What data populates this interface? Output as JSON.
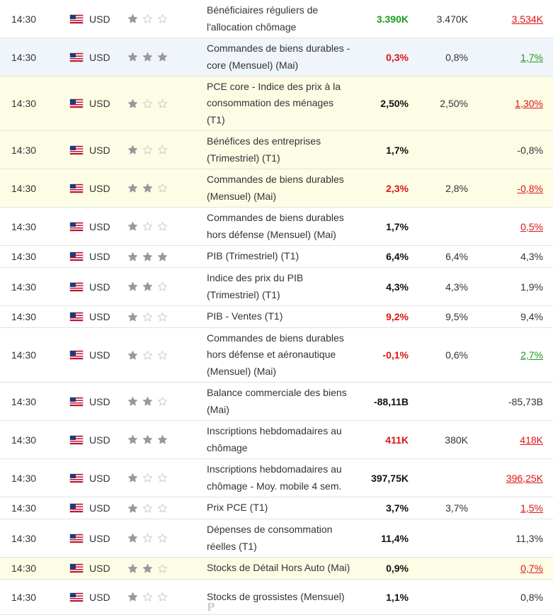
{
  "colors": {
    "positive": "#1d9b1d",
    "negative": "#dd1414",
    "highlight": "#fdfde6",
    "selected": "#f0f5fb",
    "star_on": "#999999",
    "star_off": "#cccccc"
  },
  "rows": [
    {
      "time": "14:30",
      "currency": "USD",
      "importance": 1,
      "event_lines": [
        "Bénéficiaires réguliers de",
        "l'allocation chômage"
      ],
      "actual": "3.390K",
      "actual_color": "green",
      "forecast": "3.470K",
      "previous": "3.534K",
      "previous_color": "red",
      "bg": "white"
    },
    {
      "time": "14:30",
      "currency": "USD",
      "importance": 3,
      "event_lines": [
        "Commandes de biens durables -",
        "core (Mensuel) (Mai)"
      ],
      "actual": "0,3%",
      "actual_color": "red",
      "forecast": "0,8%",
      "previous": "1,7%",
      "previous_color": "green",
      "bg": "blue"
    },
    {
      "time": "14:30",
      "currency": "USD",
      "importance": 1,
      "event_lines": [
        "PCE core - Indice des prix à la",
        "consommation des ménages",
        "(T1)"
      ],
      "actual": "2,50%",
      "actual_color": "",
      "forecast": "2,50%",
      "previous": "1,30%",
      "previous_color": "red",
      "bg": "hl"
    },
    {
      "time": "14:30",
      "currency": "USD",
      "importance": 1,
      "event_lines": [
        "Bénéfices des entreprises",
        "(Trimestriel) (T1)"
      ],
      "actual": "1,7%",
      "actual_color": "",
      "forecast": "",
      "previous": "-0,8%",
      "previous_color": "",
      "bg": "hl"
    },
    {
      "time": "14:30",
      "currency": "USD",
      "importance": 2,
      "event_lines": [
        "Commandes de biens durables",
        "(Mensuel) (Mai)"
      ],
      "actual": "2,3%",
      "actual_color": "red",
      "forecast": "2,8%",
      "previous": "-0,8%",
      "previous_color": "red",
      "bg": "hl"
    },
    {
      "time": "14:30",
      "currency": "USD",
      "importance": 1,
      "event_lines": [
        "Commandes de biens durables",
        "hors défense (Mensuel) (Mai)"
      ],
      "actual": "1,7%",
      "actual_color": "",
      "forecast": "",
      "previous": "0,5%",
      "previous_color": "red",
      "bg": "white"
    },
    {
      "time": "14:30",
      "currency": "USD",
      "importance": 3,
      "event_lines": [
        "PIB (Trimestriel) (T1)"
      ],
      "actual": "6,4%",
      "actual_color": "",
      "forecast": "6,4%",
      "previous": "4,3%",
      "previous_color": "",
      "bg": "white"
    },
    {
      "time": "14:30",
      "currency": "USD",
      "importance": 2,
      "event_lines": [
        "Indice des prix du PIB",
        "(Trimestriel) (T1)"
      ],
      "actual": "4,3%",
      "actual_color": "",
      "forecast": "4,3%",
      "previous": "1,9%",
      "previous_color": "",
      "bg": "white"
    },
    {
      "time": "14:30",
      "currency": "USD",
      "importance": 1,
      "event_lines": [
        "PIB - Ventes (T1)"
      ],
      "actual": "9,2%",
      "actual_color": "red",
      "forecast": "9,5%",
      "previous": "9,4%",
      "previous_color": "",
      "bg": "white"
    },
    {
      "time": "14:30",
      "currency": "USD",
      "importance": 1,
      "event_lines": [
        "Commandes de biens durables",
        "hors défense et aéronautique",
        "(Mensuel) (Mai)"
      ],
      "actual": "-0,1%",
      "actual_color": "red",
      "forecast": "0,6%",
      "previous": "2,7%",
      "previous_color": "green",
      "bg": "white"
    },
    {
      "time": "14:30",
      "currency": "USD",
      "importance": 2,
      "event_lines": [
        "Balance commerciale des biens",
        "(Mai)"
      ],
      "actual": "-88,11B",
      "actual_color": "",
      "forecast": "",
      "previous": "-85,73B",
      "previous_color": "",
      "bg": "white"
    },
    {
      "time": "14:30",
      "currency": "USD",
      "importance": 3,
      "event_lines": [
        "Inscriptions hebdomadaires au",
        "chômage"
      ],
      "actual": "411K",
      "actual_color": "red",
      "forecast": "380K",
      "previous": "418K",
      "previous_color": "red",
      "bg": "white"
    },
    {
      "time": "14:30",
      "currency": "USD",
      "importance": 1,
      "event_lines": [
        "Inscriptions hebdomadaires au",
        "chômage - Moy. mobile 4 sem."
      ],
      "actual": "397,75K",
      "actual_color": "",
      "forecast": "",
      "previous": "396,25K",
      "previous_color": "red",
      "bg": "white"
    },
    {
      "time": "14:30",
      "currency": "USD",
      "importance": 1,
      "event_lines": [
        "Prix PCE (T1)"
      ],
      "actual": "3,7%",
      "actual_color": "",
      "forecast": "3,7%",
      "previous": "1,5%",
      "previous_color": "red",
      "bg": "white"
    },
    {
      "time": "14:30",
      "currency": "USD",
      "importance": 1,
      "event_lines": [
        "Dépenses de consommation",
        "réelles (T1)"
      ],
      "actual": "11,4%",
      "actual_color": "",
      "forecast": "",
      "previous": "11,3%",
      "previous_color": "",
      "bg": "white"
    },
    {
      "time": "14:30",
      "currency": "USD",
      "importance": 2,
      "event_lines": [
        "Stocks de Détail Hors Auto (Mai)"
      ],
      "actual": "0,9%",
      "actual_color": "",
      "forecast": "",
      "previous": "0,7%",
      "previous_color": "red",
      "bg": "hl"
    },
    {
      "time": "14:30",
      "currency": "USD",
      "importance": 1,
      "event_lines": [
        "Stocks de grossistes (Mensuel)"
      ],
      "actual": "1,1%",
      "actual_color": "",
      "forecast": "",
      "previous": "0,8%",
      "previous_color": "",
      "bg": "white"
    }
  ],
  "partial_text": "P"
}
